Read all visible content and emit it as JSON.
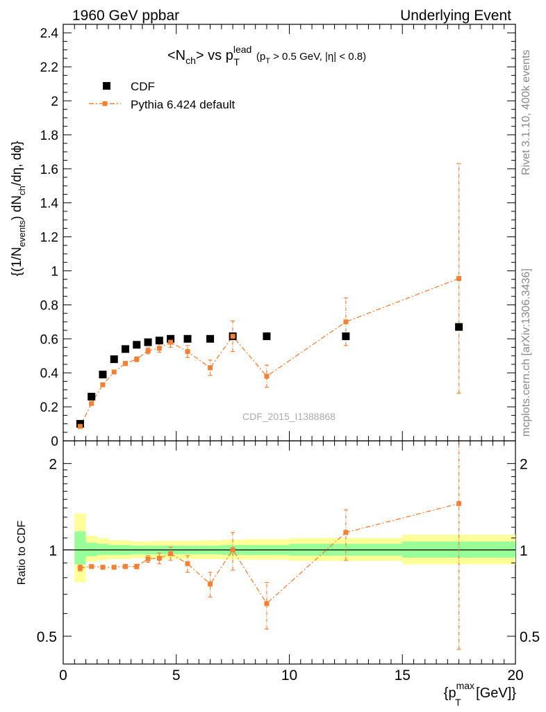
{
  "header": {
    "left": "1960 GeV ppbar",
    "right": "Underlying Event"
  },
  "side_labels": {
    "rivet": "Rivet 3.1.10,  400k events",
    "mcplots": "mcplots.cern.ch [arXiv:1306.3436]"
  },
  "title": {
    "main": "<N",
    "main_sub": "ch",
    "vs": "> vs p",
    "vs_sup": "lead",
    "vs_sub": "T",
    "cut_open": "(p",
    "cut_sub": "T",
    "cut_rest": " > 0.5 GeV, |η| < 0.8)"
  },
  "watermark": "CDF_2015_I1388868",
  "legend": {
    "data_label": "CDF",
    "mc_label": "Pythia 6.424 default"
  },
  "top_axis": {
    "ylabel_pre": "{(1/N",
    "ylabel_sub1": "events",
    "ylabel_mid": ") dN",
    "ylabel_sub2": "ch",
    "ylabel_post": "/dη, dϕ}",
    "ticks": [
      "0",
      "0.2",
      "0.4",
      "0.6",
      "0.8",
      "1",
      "1.2",
      "1.4",
      "1.6",
      "1.8",
      "2",
      "2.2",
      "2.4"
    ]
  },
  "bottom_axis": {
    "ylabel": "Ratio to CDF",
    "ticks_left": [
      "0.5",
      "1",
      "2"
    ],
    "ticks_right": [
      "0.5",
      "1",
      "2"
    ],
    "xticks": [
      "0",
      "5",
      "10",
      "15",
      "20"
    ],
    "xlabel_pre": "{p",
    "xlabel_sup": "max",
    "xlabel_sub": "T",
    "xlabel_post": " [GeV]}"
  },
  "colors": {
    "data": "#000000",
    "mc": "#f57f32",
    "band_inner": "#99ff99",
    "band_outer": "#ffff99"
  },
  "chart_data": [
    {
      "type": "scatter",
      "title": "<Nch> vs pT lead (pT > 0.5 GeV, |η| < 0.8)",
      "xlim": [
        0,
        20
      ],
      "ylim": [
        0,
        2.45
      ],
      "series": [
        {
          "name": "CDF",
          "x": [
            0.75,
            1.25,
            1.75,
            2.25,
            2.75,
            3.25,
            3.75,
            4.25,
            4.75,
            5.5,
            6.5,
            7.5,
            9.0,
            12.5,
            17.5
          ],
          "y": [
            0.1,
            0.26,
            0.39,
            0.48,
            0.54,
            0.565,
            0.58,
            0.59,
            0.6,
            0.6,
            0.6,
            0.615,
            0.615,
            0.615,
            0.67
          ],
          "yerr": [
            0.005,
            0.005,
            0.005,
            0.005,
            0.005,
            0.005,
            0.005,
            0.005,
            0.01,
            0.01,
            0.01,
            0.01,
            0.012,
            0.015,
            0.02
          ]
        },
        {
          "name": "Pythia 6.424 default",
          "x": [
            0.75,
            1.25,
            1.75,
            2.25,
            2.75,
            3.25,
            3.75,
            4.25,
            4.75,
            5.5,
            6.5,
            7.5,
            9.0,
            12.5,
            17.5
          ],
          "y": [
            0.085,
            0.22,
            0.33,
            0.405,
            0.455,
            0.48,
            0.53,
            0.545,
            0.58,
            0.525,
            0.43,
            0.615,
            0.38,
            0.7,
            0.955
          ],
          "yerr": [
            0.004,
            0.006,
            0.008,
            0.01,
            0.012,
            0.014,
            0.018,
            0.024,
            0.03,
            0.035,
            0.045,
            0.09,
            0.065,
            0.14,
            0.675
          ]
        }
      ]
    },
    {
      "type": "scatter",
      "ylabel": "Ratio to CDF",
      "yscale": "log",
      "xlim": [
        0,
        20
      ],
      "ylim": [
        0.4,
        2.4
      ],
      "bands": [
        {
          "xlo": 0.5,
          "xhi": 1.0,
          "inner": [
            0.89,
            1.16
          ],
          "outer": [
            0.77,
            1.34
          ]
        },
        {
          "xlo": 1.0,
          "xhi": 1.5,
          "inner": [
            0.95,
            1.06
          ],
          "outer": [
            0.91,
            1.12
          ]
        },
        {
          "xlo": 1.5,
          "xhi": 2.0,
          "inner": [
            0.96,
            1.05
          ],
          "outer": [
            0.92,
            1.1
          ]
        },
        {
          "xlo": 2.0,
          "xhi": 3.0,
          "inner": [
            0.96,
            1.04
          ],
          "outer": [
            0.93,
            1.08
          ]
        },
        {
          "xlo": 3.0,
          "xhi": 4.0,
          "inner": [
            0.965,
            1.035
          ],
          "outer": [
            0.935,
            1.07
          ]
        },
        {
          "xlo": 4.0,
          "xhi": 5.0,
          "inner": [
            0.965,
            1.035
          ],
          "outer": [
            0.93,
            1.075
          ]
        },
        {
          "xlo": 5.0,
          "xhi": 6.0,
          "inner": [
            0.965,
            1.035
          ],
          "outer": [
            0.93,
            1.075
          ]
        },
        {
          "xlo": 6.0,
          "xhi": 7.0,
          "inner": [
            0.965,
            1.035
          ],
          "outer": [
            0.93,
            1.08
          ]
        },
        {
          "xlo": 7.0,
          "xhi": 8.0,
          "inner": [
            0.96,
            1.04
          ],
          "outer": [
            0.925,
            1.085
          ]
        },
        {
          "xlo": 8.0,
          "xhi": 10.0,
          "inner": [
            0.96,
            1.04
          ],
          "outer": [
            0.925,
            1.09
          ]
        },
        {
          "xlo": 10.0,
          "xhi": 15.0,
          "inner": [
            0.955,
            1.05
          ],
          "outer": [
            0.915,
            1.1
          ]
        },
        {
          "xlo": 15.0,
          "xhi": 20.0,
          "inner": [
            0.94,
            1.07
          ],
          "outer": [
            0.89,
            1.13
          ]
        }
      ],
      "series": [
        {
          "name": "Pythia 6.424 default",
          "x": [
            0.75,
            1.25,
            1.75,
            2.25,
            2.75,
            3.25,
            3.75,
            4.25,
            4.75,
            5.5,
            6.5,
            7.5,
            9.0,
            12.5,
            17.5
          ],
          "y": [
            0.865,
            0.875,
            0.87,
            0.87,
            0.875,
            0.875,
            0.93,
            0.935,
            0.97,
            0.895,
            0.76,
            1.0,
            0.65,
            1.15,
            1.45
          ],
          "yerr": [
            0.02,
            0.012,
            0.012,
            0.012,
            0.014,
            0.016,
            0.025,
            0.04,
            0.05,
            0.06,
            0.075,
            0.15,
            0.12,
            0.23,
            1.0
          ]
        }
      ]
    }
  ]
}
